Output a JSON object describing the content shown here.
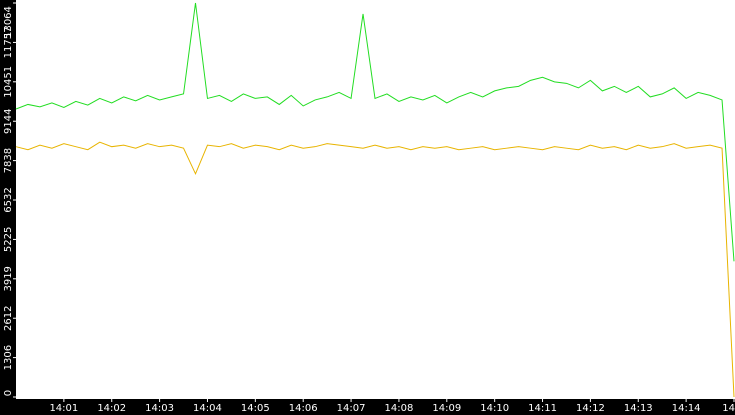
{
  "chart_data": {
    "type": "line",
    "categories": [
      null,
      null,
      null,
      null,
      "14:01",
      null,
      null,
      null,
      "14:02",
      null,
      null,
      null,
      "14:03",
      null,
      null,
      null,
      "14:04",
      null,
      null,
      null,
      "14:05",
      null,
      null,
      null,
      "14:06",
      null,
      null,
      null,
      "14:07",
      null,
      null,
      null,
      "14:08",
      null,
      null,
      null,
      "14:09",
      null,
      null,
      null,
      "14:10",
      null,
      null,
      null,
      "14:11",
      null,
      null,
      null,
      "14:12",
      null,
      null,
      null,
      "14:13",
      null,
      null,
      null,
      "14:14",
      null,
      null,
      null,
      "14"
    ],
    "series": [
      {
        "color": "#22dd22",
        "values": [
          9550,
          9700,
          9620,
          9750,
          9600,
          9800,
          9680,
          9900,
          9750,
          9950,
          9820,
          10000,
          9850,
          9950,
          10050,
          13064,
          9900,
          10000,
          9800,
          10050,
          9900,
          9950,
          9700,
          10000,
          9650,
          9850,
          9950,
          10100,
          9900,
          12700,
          9900,
          10050,
          9800,
          9950,
          9850,
          10000,
          9750,
          9950,
          10100,
          9950,
          10150,
          10250,
          10300,
          10500,
          10600,
          10450,
          10400,
          10250,
          10500,
          10150,
          10300,
          10100,
          10300,
          9950,
          10050,
          10250,
          9900,
          10100,
          10000,
          9850,
          4500
        ]
      },
      {
        "color": "#e8b400",
        "values": [
          8300,
          8200,
          8350,
          8250,
          8400,
          8300,
          8200,
          8450,
          8300,
          8350,
          8250,
          8400,
          8300,
          8350,
          8250,
          7400,
          8350,
          8300,
          8400,
          8250,
          8350,
          8300,
          8200,
          8350,
          8250,
          8300,
          8400,
          8350,
          8300,
          8250,
          8350,
          8250,
          8300,
          8200,
          8300,
          8250,
          8300,
          8200,
          8250,
          8300,
          8200,
          8250,
          8300,
          8250,
          8200,
          8300,
          8250,
          8200,
          8350,
          8250,
          8300,
          8200,
          8350,
          8250,
          8300,
          8400,
          8250,
          8300,
          8350,
          8250,
          0
        ]
      }
    ],
    "ylim": [
      0,
      13064
    ],
    "yticks": [
      0,
      1306,
      2612,
      3919,
      5225,
      6532,
      7838,
      9144,
      10451,
      11757,
      13064
    ]
  }
}
